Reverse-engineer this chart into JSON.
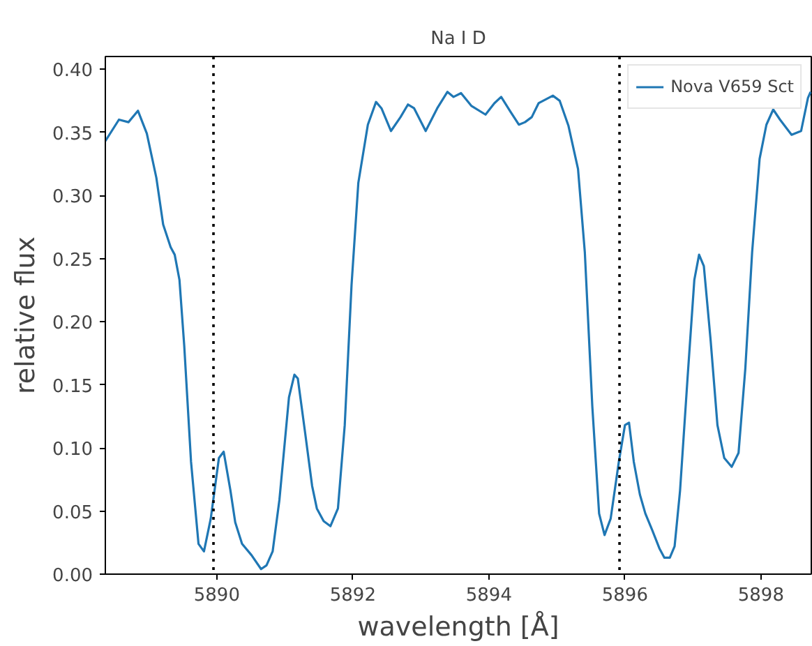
{
  "chart_data": {
    "type": "line",
    "title": "Na I D",
    "xlabel": "wavelength [Å]",
    "ylabel": "relative flux",
    "x": [
      5888.36,
      5888.56,
      5888.7,
      5888.84,
      5888.97,
      5889.11,
      5889.21,
      5889.32,
      5889.38,
      5889.45,
      5889.52,
      5889.62,
      5889.73,
      5889.81,
      5889.91,
      5890.03,
      5890.1,
      5890.2,
      5890.27,
      5890.37,
      5890.51,
      5890.65,
      5890.73,
      5890.82,
      5890.92,
      5891.06,
      5891.14,
      5891.19,
      5891.3,
      5891.4,
      5891.47,
      5891.57,
      5891.67,
      5891.78,
      5891.88,
      5891.98,
      5892.08,
      5892.22,
      5892.34,
      5892.42,
      5892.56,
      5892.7,
      5892.81,
      5892.9,
      5893.07,
      5893.24,
      5893.39,
      5893.48,
      5893.59,
      5893.74,
      5893.95,
      5894.08,
      5894.18,
      5894.32,
      5894.44,
      5894.53,
      5894.63,
      5894.73,
      5894.94,
      5895.04,
      5895.17,
      5895.31,
      5895.41,
      5895.52,
      5895.62,
      5895.7,
      5895.79,
      5895.91,
      5896.0,
      5896.06,
      5896.13,
      5896.22,
      5896.3,
      5896.4,
      5896.51,
      5896.58,
      5896.66,
      5896.73,
      5896.81,
      5896.92,
      5897.02,
      5897.09,
      5897.16,
      5897.26,
      5897.36,
      5897.46,
      5897.57,
      5897.67,
      5897.77,
      5897.87,
      5897.98,
      5898.08,
      5898.18,
      5898.28,
      5898.45,
      5898.59,
      5898.69,
      5898.73
    ],
    "series": [
      {
        "name": "Nova V659 Sct",
        "color": "#1f77b4",
        "values": [
          0.343,
          0.36,
          0.358,
          0.367,
          0.349,
          0.314,
          0.277,
          0.259,
          0.253,
          0.233,
          0.181,
          0.089,
          0.024,
          0.018,
          0.044,
          0.092,
          0.097,
          0.066,
          0.041,
          0.024,
          0.015,
          0.004,
          0.007,
          0.018,
          0.059,
          0.14,
          0.158,
          0.155,
          0.111,
          0.07,
          0.052,
          0.042,
          0.038,
          0.052,
          0.118,
          0.229,
          0.31,
          0.356,
          0.374,
          0.369,
          0.351,
          0.362,
          0.372,
          0.369,
          0.351,
          0.369,
          0.382,
          0.378,
          0.381,
          0.371,
          0.364,
          0.373,
          0.378,
          0.366,
          0.356,
          0.358,
          0.362,
          0.373,
          0.379,
          0.375,
          0.355,
          0.321,
          0.255,
          0.133,
          0.048,
          0.031,
          0.044,
          0.089,
          0.118,
          0.12,
          0.089,
          0.063,
          0.048,
          0.035,
          0.02,
          0.013,
          0.013,
          0.022,
          0.066,
          0.155,
          0.233,
          0.253,
          0.244,
          0.185,
          0.118,
          0.092,
          0.085,
          0.096,
          0.163,
          0.255,
          0.329,
          0.356,
          0.368,
          0.36,
          0.348,
          0.351,
          0.377,
          0.382
        ]
      }
    ],
    "xlim": [
      5888.36,
      5898.74
    ],
    "ylim": [
      0,
      0.41
    ],
    "xticks": [
      5890,
      5892,
      5894,
      5896,
      5898
    ],
    "yticks": [
      {
        "value": 0,
        "label": "0.00"
      },
      {
        "value": 0.05,
        "label": "0.05"
      },
      {
        "value": 0.1,
        "label": "0.10"
      },
      {
        "value": 0.15,
        "label": "0.15"
      },
      {
        "value": 0.2,
        "label": "0.20"
      },
      {
        "value": 0.25,
        "label": "0.25"
      },
      {
        "value": 0.3,
        "label": "0.30"
      },
      {
        "value": 0.35,
        "label": "0.35"
      },
      {
        "value": 0.4,
        "label": "0.40"
      }
    ],
    "ref_lines": [
      {
        "axis": "x",
        "value": 5889.95,
        "color": "#000000",
        "line_style": "dotted"
      },
      {
        "axis": "x",
        "value": 5895.92,
        "color": "#000000",
        "line_style": "dotted"
      }
    ],
    "grid": false,
    "legend": "top right",
    "marker": "none",
    "line_style": "solid"
  }
}
